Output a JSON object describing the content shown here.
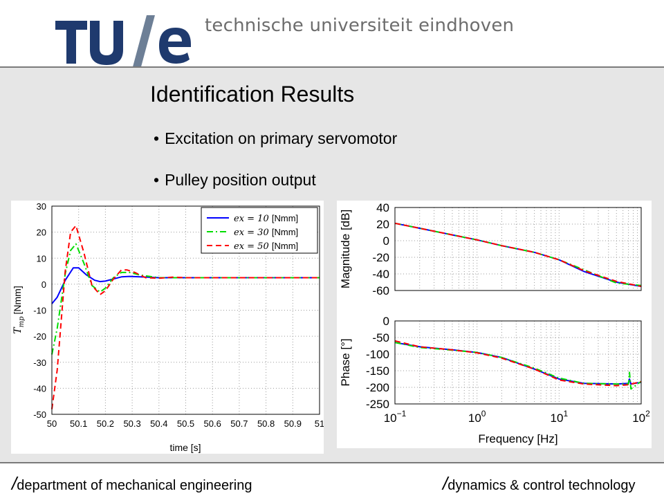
{
  "header": {
    "logo_text": "TU/e",
    "university_name": "technische universiteit eindhoven",
    "brand_color": "#1f3a6e",
    "slash_color": "#6d7f96"
  },
  "slide": {
    "title": "Identification Results",
    "bullets": [
      "Excitation on primary servomotor",
      "Pulley position output"
    ]
  },
  "footer": {
    "left_slash": "/",
    "left_text": "department of mechanical engineering",
    "right_slash": "/",
    "right_text": "dynamics & control technology"
  },
  "chart_data": [
    {
      "type": "line",
      "xlabel": "time [s]",
      "ylabel": "T_mp [Nmm]",
      "ylabel_main": "T",
      "ylabel_sub": "mp",
      "ylabel_unit": "[Nmm]",
      "xlim": [
        50,
        51
      ],
      "ylim": [
        -50,
        30
      ],
      "xticks": [
        "50",
        "50.1",
        "50.2",
        "50.3",
        "50.4",
        "50.5",
        "50.6",
        "50.7",
        "50.8",
        "50.9",
        "51"
      ],
      "yticks": [
        "30",
        "20",
        "10",
        "0",
        "-10",
        "-20",
        "-30",
        "-40",
        "-50"
      ],
      "grid": true,
      "legend_position": "top-right",
      "legend_unit": "[Nmm]",
      "series": [
        {
          "name": "ex = 10",
          "legend_math": "ex = 10",
          "color": "#0000ff",
          "dash": "solid",
          "x": [
            50,
            50.02,
            50.05,
            50.08,
            50.1,
            50.13,
            50.16,
            50.18,
            50.2,
            50.23,
            50.26,
            50.29,
            50.33,
            50.4,
            50.5,
            50.6,
            50.8,
            51
          ],
          "y": [
            -7.5,
            -5,
            1.5,
            6.3,
            6.3,
            3.5,
            1.5,
            1.0,
            1.2,
            2.0,
            2.8,
            3.0,
            2.8,
            2.5,
            2.5,
            2.5,
            2.5,
            2.5
          ]
        },
        {
          "name": "ex = 30",
          "legend_math": "ex = 30",
          "color": "#00dd00",
          "dash": "dashdot",
          "x": [
            50,
            50.02,
            50.05,
            50.07,
            50.09,
            50.12,
            50.15,
            50.18,
            50.2,
            50.23,
            50.26,
            50.29,
            50.33,
            50.4,
            50.5,
            50.6,
            50.8,
            51
          ],
          "y": [
            -27,
            -17,
            4,
            13,
            15.5,
            8,
            -0.5,
            -3,
            -1.5,
            2.5,
            4.5,
            4.5,
            3.5,
            2.5,
            2.5,
            2.5,
            2.5,
            2.5
          ]
        },
        {
          "name": "ex = 50",
          "legend_math": "ex = 50",
          "color": "#ff0000",
          "dash": "dashed",
          "x": [
            50,
            50.02,
            50.05,
            50.07,
            50.09,
            50.12,
            50.15,
            50.18,
            50.2,
            50.23,
            50.26,
            50.28,
            50.31,
            50.35,
            50.4,
            50.45,
            50.5,
            50.6,
            50.8,
            51
          ],
          "y": [
            -48,
            -33,
            5,
            20,
            22.5,
            12,
            -0.5,
            -4,
            -2.5,
            2,
            5.5,
            5.5,
            4.5,
            2.5,
            2.3,
            2.7,
            2.5,
            2.5,
            2.5,
            2.5
          ]
        }
      ]
    },
    {
      "type": "line",
      "ylabel": "Magnitude [dB]",
      "xscale": "log",
      "xlim": [
        0.1,
        100
      ],
      "ylim": [
        -60,
        40
      ],
      "yticks": [
        "40",
        "20",
        "0",
        "-20",
        "-40",
        "-60"
      ],
      "grid": true,
      "series": [
        {
          "color": "#0000ff",
          "dash": "solid",
          "x": [
            0.1,
            0.2,
            0.5,
            1,
            2,
            5,
            10,
            20,
            50,
            100
          ],
          "y": [
            21,
            15,
            7,
            1,
            -6,
            -14,
            -23,
            -37,
            -50,
            -55
          ]
        },
        {
          "color": "#00dd00",
          "dash": "dashdot",
          "x": [
            0.1,
            0.2,
            0.5,
            1,
            2,
            5,
            10,
            20,
            50,
            100
          ],
          "y": [
            21,
            15,
            7,
            1,
            -6,
            -14,
            -23,
            -35,
            -51,
            -54
          ]
        },
        {
          "color": "#ff0000",
          "dash": "dashed",
          "x": [
            0.1,
            0.2,
            0.5,
            1,
            2,
            5,
            10,
            20,
            50,
            100
          ],
          "y": [
            21,
            15,
            7,
            1,
            -6,
            -14,
            -23,
            -36,
            -49,
            -55
          ]
        }
      ]
    },
    {
      "type": "line",
      "xlabel": "Frequency [Hz]",
      "ylabel": "Phase [°]",
      "xscale": "log",
      "xlim": [
        0.1,
        100
      ],
      "ylim": [
        -250,
        0
      ],
      "yticks": [
        "0",
        "-50",
        "-100",
        "-150",
        "-200",
        "-250"
      ],
      "xticks": [
        0.1,
        1,
        10,
        100
      ],
      "xtick_bases": [
        "10",
        "10",
        "10",
        "10"
      ],
      "xtick_exps": [
        "−1",
        "0",
        "1",
        "2"
      ],
      "grid": true,
      "series": [
        {
          "color": "#0000ff",
          "dash": "solid",
          "x": [
            0.1,
            0.2,
            0.5,
            1,
            2,
            5,
            10,
            20,
            50,
            70,
            72,
            75,
            100
          ],
          "y": [
            -65,
            -78,
            -87,
            -95,
            -110,
            -145,
            -175,
            -188,
            -190,
            -188,
            -175,
            -190,
            -185
          ]
        },
        {
          "color": "#00dd00",
          "dash": "dashdot",
          "x": [
            0.1,
            0.2,
            0.5,
            1,
            2,
            5,
            10,
            20,
            50,
            70,
            72,
            75,
            100
          ],
          "y": [
            -65,
            -80,
            -88,
            -95,
            -110,
            -142,
            -172,
            -188,
            -190,
            -190,
            -155,
            -205,
            -182
          ]
        },
        {
          "color": "#ff0000",
          "dash": "dashed",
          "x": [
            0.1,
            0.2,
            0.5,
            1,
            2,
            5,
            10,
            20,
            50,
            70,
            100
          ],
          "y": [
            -60,
            -78,
            -87,
            -96,
            -112,
            -145,
            -178,
            -190,
            -195,
            -192,
            -183
          ]
        }
      ]
    }
  ]
}
